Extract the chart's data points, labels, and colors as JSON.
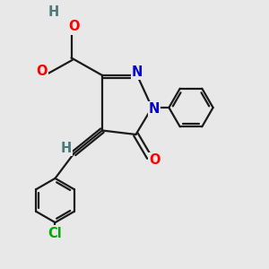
{
  "bg_color": "#e8e8e8",
  "bond_color": "#1a1a1a",
  "bond_width": 1.6,
  "atom_colors": {
    "O": "#ff0000",
    "N": "#0000cc",
    "Cl": "#00aa00",
    "H_gray": "#4a7a7a",
    "C": "#1a1a1a"
  },
  "font_size_atom": 10.5
}
